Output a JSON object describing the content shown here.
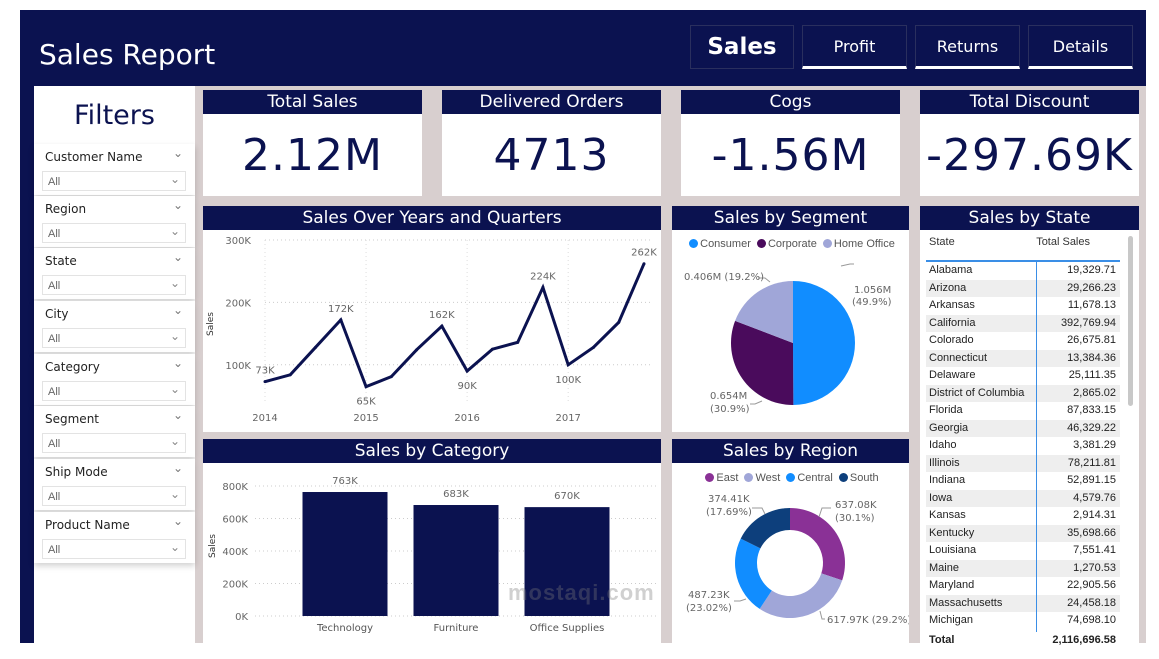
{
  "header": {
    "title": "Sales Report"
  },
  "nav": [
    {
      "label": "Sales",
      "active": true
    },
    {
      "label": "Profit",
      "active": false
    },
    {
      "label": "Returns",
      "active": false
    },
    {
      "label": "Details",
      "active": false
    }
  ],
  "filters": {
    "title": "Filters",
    "slicers": [
      {
        "label": "Customer Name",
        "value": "All"
      },
      {
        "label": "Region",
        "value": "All"
      },
      {
        "label": "State",
        "value": "All"
      },
      {
        "label": "City",
        "value": "All"
      },
      {
        "label": "Category",
        "value": "All"
      },
      {
        "label": "Segment",
        "value": "All"
      },
      {
        "label": "Ship Mode",
        "value": "All"
      },
      {
        "label": "Product Name",
        "value": "All"
      }
    ]
  },
  "kpis": [
    {
      "title": "Total Sales",
      "value": "2.12M"
    },
    {
      "title": "Delivered Orders",
      "value": "4713"
    },
    {
      "title": "Cogs",
      "value": "-1.56M"
    },
    {
      "title": "Total Discount",
      "value": "-297.69K"
    }
  ],
  "colors": {
    "navy": "#0b1250",
    "consumer": "#118dff",
    "corporate": "#4a0b5c",
    "home_office": "#a0a6d8",
    "east": "#8a3196",
    "west": "#a0a6d8",
    "central": "#118dff",
    "south": "#0d3f7c"
  },
  "chart_data": [
    {
      "type": "line",
      "title": "Sales Over Years and Quarters",
      "xlabel": "",
      "ylabel": "Sales",
      "ylim": [
        50000,
        300000
      ],
      "yticks": [
        "100K",
        "200K",
        "300K"
      ],
      "xticks": [
        "2014",
        "2015",
        "2016",
        "2017"
      ],
      "x": [
        "2014 Q1",
        "2014 Q2",
        "2014 Q3",
        "2014 Q4",
        "2015 Q1",
        "2015 Q2",
        "2015 Q3",
        "2015 Q4",
        "2016 Q1",
        "2016 Q2",
        "2016 Q3",
        "2016 Q4",
        "2017 Q1",
        "2017 Q2",
        "2017 Q3",
        "2017 Q4"
      ],
      "values": [
        73000,
        84000,
        128000,
        172000,
        65000,
        81000,
        124000,
        162000,
        90000,
        125000,
        136000,
        224000,
        100000,
        128000,
        168000,
        262000
      ],
      "data_labels": {
        "0": "73K",
        "3": "172K",
        "4": "65K",
        "7": "162K",
        "8": "90K",
        "11": "224K",
        "12": "100K",
        "15": "262K"
      },
      "grid": true
    },
    {
      "type": "pie",
      "title": "Sales by Segment",
      "legend": "top",
      "slices": [
        {
          "name": "Consumer",
          "value": 1.056,
          "label": "1.056M",
          "pct": "(49.9%)"
        },
        {
          "name": "Corporate",
          "value": 0.654,
          "label": "0.654M",
          "pct": "(30.9%)"
        },
        {
          "name": "Home Office",
          "value": 0.406,
          "label": "0.406M",
          "pct": "(19.2%)"
        }
      ]
    },
    {
      "type": "bar",
      "title": "Sales by Category",
      "categories": [
        "Technology",
        "Furniture",
        "Office Supplies"
      ],
      "values": [
        763000,
        683000,
        670000
      ],
      "data_labels": [
        "763K",
        "683K",
        "670K"
      ],
      "ylabel": "Sales",
      "ylim": [
        0,
        800000
      ],
      "yticks": [
        "0K",
        "200K",
        "400K",
        "600K",
        "800K"
      ],
      "grid": true
    },
    {
      "type": "pie",
      "title": "Sales by Region",
      "donut": true,
      "legend": "top",
      "slices": [
        {
          "name": "East",
          "value": 637.08,
          "label": "637.08K",
          "pct": "(30.1%)"
        },
        {
          "name": "West",
          "value": 617.97,
          "label": "617.97K",
          "pct": "(29.2%)"
        },
        {
          "name": "Central",
          "value": 487.23,
          "label": "487.23K",
          "pct": "(23.02%)"
        },
        {
          "name": "South",
          "value": 374.41,
          "label": "374.41K",
          "pct": "(17.69%)"
        }
      ]
    },
    {
      "type": "table",
      "title": "Sales by State",
      "columns": [
        "State",
        "Total Sales"
      ],
      "rows": [
        [
          "Alabama",
          "19,329.71"
        ],
        [
          "Arizona",
          "29,266.23"
        ],
        [
          "Arkansas",
          "11,678.13"
        ],
        [
          "California",
          "392,769.94"
        ],
        [
          "Colorado",
          "26,675.81"
        ],
        [
          "Connecticut",
          "13,384.36"
        ],
        [
          "Delaware",
          "25,111.35"
        ],
        [
          "District of Columbia",
          "2,865.02"
        ],
        [
          "Florida",
          "87,833.15"
        ],
        [
          "Georgia",
          "46,329.22"
        ],
        [
          "Idaho",
          "3,381.29"
        ],
        [
          "Illinois",
          "78,211.81"
        ],
        [
          "Indiana",
          "52,891.15"
        ],
        [
          "Iowa",
          "4,579.76"
        ],
        [
          "Kansas",
          "2,914.31"
        ],
        [
          "Kentucky",
          "35,698.66"
        ],
        [
          "Louisiana",
          "7,551.41"
        ],
        [
          "Maine",
          "1,270.53"
        ],
        [
          "Maryland",
          "22,905.56"
        ],
        [
          "Massachusetts",
          "24,458.18"
        ],
        [
          "Michigan",
          "74,698.10"
        ]
      ],
      "total": [
        "Total",
        "2,116,696.58"
      ]
    }
  ],
  "watermark": "mostaqi.com"
}
